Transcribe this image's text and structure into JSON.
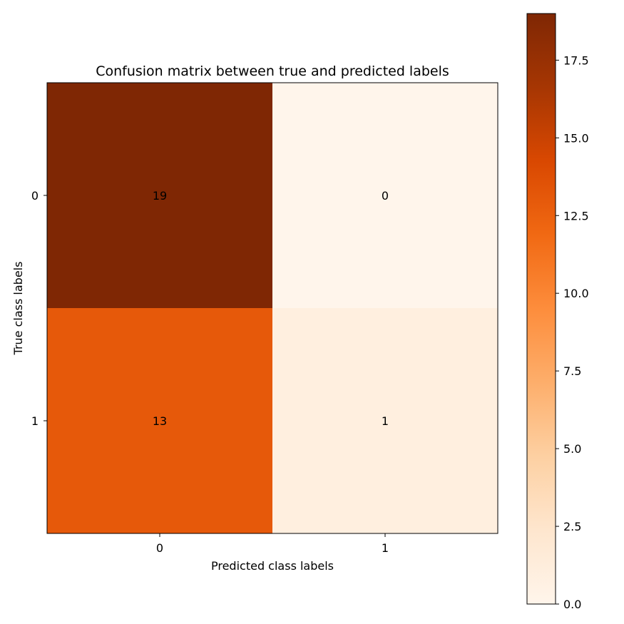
{
  "chart_data": {
    "type": "heatmap",
    "title": "Confusion matrix between true and predicted labels",
    "xlabel": "Predicted class labels",
    "ylabel": "True class labels",
    "x_categories": [
      "0",
      "1"
    ],
    "y_categories": [
      "0",
      "1"
    ],
    "values": [
      [
        19,
        0
      ],
      [
        13,
        1
      ]
    ],
    "cell_labels": [
      [
        "19",
        "0"
      ],
      [
        "13",
        "1"
      ]
    ],
    "colormap": "Oranges",
    "colorbar": {
      "range": [
        0,
        19
      ],
      "ticks": [
        0.0,
        2.5,
        5.0,
        7.5,
        10.0,
        12.5,
        15.0,
        17.5
      ],
      "tick_labels": [
        "0.0",
        "2.5",
        "5.0",
        "7.5",
        "10.0",
        "12.5",
        "15.0",
        "17.5"
      ]
    }
  }
}
